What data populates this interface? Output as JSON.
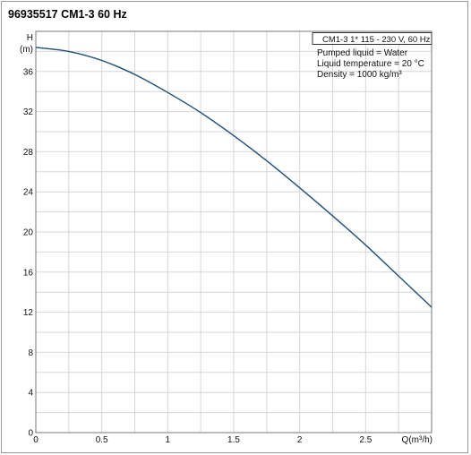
{
  "title": "96935517 CM1-3 60 Hz",
  "chart_data": {
    "type": "line",
    "ylabel_top": "H",
    "ylabel_unit": "(m)",
    "xlabel": "Q(m³/h)",
    "xlim": [
      0,
      3
    ],
    "ylim": [
      0,
      40
    ],
    "x_ticks": [
      0,
      0.5,
      1,
      1.5,
      2,
      2.5
    ],
    "x_tick_labels": [
      "0",
      "0.5",
      "1",
      "1.5",
      "2",
      "2.5"
    ],
    "y_ticks": [
      0,
      4,
      8,
      12,
      16,
      20,
      24,
      28,
      32,
      36
    ],
    "y_tick_labels": [
      "0",
      "4",
      "8",
      "12",
      "16",
      "20",
      "24",
      "28",
      "32",
      "36"
    ],
    "grid": true,
    "series": [
      {
        "color": "#1f4e79",
        "x": [
          0,
          0.25,
          0.5,
          0.75,
          1,
          1.25,
          1.5,
          1.75,
          2,
          2.25,
          2.5,
          2.75,
          3
        ],
        "y": [
          38.4,
          38.0,
          37.1,
          35.7,
          33.9,
          31.9,
          29.6,
          27.1,
          24.4,
          21.6,
          18.7,
          15.6,
          12.5
        ]
      }
    ],
    "legend_box": {
      "header": "CM1-3  1* 115 - 230 V, 60 Hz",
      "lines": [
        "Pumped liquid = Water",
        "Liquid temperature = 20 °C",
        "Density = 1000 kg/m³"
      ],
      "placement": "top-right"
    }
  }
}
